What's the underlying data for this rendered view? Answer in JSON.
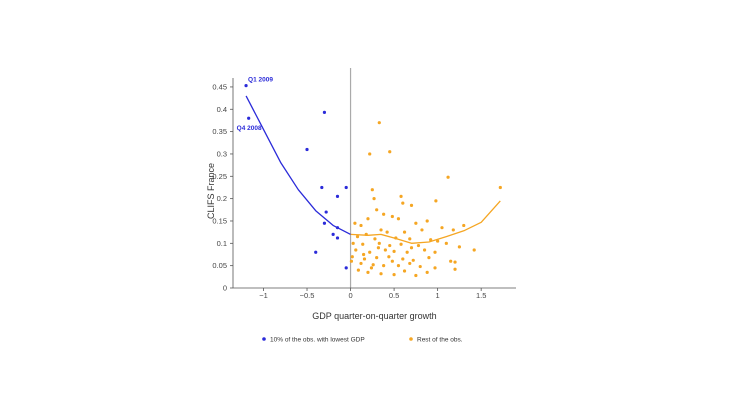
{
  "colors": {
    "low_gdp": "#2b2bd9",
    "rest": "#f5a623",
    "axis": "#555555",
    "zero_line": "#aaaaaa"
  },
  "chart_data": {
    "type": "scatter",
    "title": "",
    "xlabel": "GDP quarter-on-quarter growth",
    "ylabel": "CLIFS France",
    "xlim": [
      -1.35,
      1.9
    ],
    "ylim": [
      0,
      0.47
    ],
    "x_ticks": [
      -1,
      -0.5,
      0,
      0.5,
      1,
      1.5
    ],
    "x_tick_labels": [
      "−1",
      "−0.5",
      "0",
      "0.5",
      "1",
      "1.5"
    ],
    "y_ticks": [
      0,
      0.05,
      0.1,
      0.15,
      0.2,
      0.25,
      0.3,
      0.35,
      0.4,
      0.45
    ],
    "y_tick_labels": [
      "0",
      "0.05",
      "0.1",
      "0.15",
      "0.2",
      "0.25",
      "0.3",
      "0.35",
      "0.4",
      "0.45"
    ],
    "grid": false,
    "legend_position": "bottom",
    "annotations": [
      {
        "text": "Q1 2009",
        "x": -1.2,
        "y": 0.453
      },
      {
        "text": "Q4 2008",
        "x": -1.17,
        "y": 0.38
      }
    ],
    "series": [
      {
        "name": "10% of the obs. with lowest GDP",
        "color_key": "low_gdp",
        "points": [
          [
            -1.2,
            0.453
          ],
          [
            -1.17,
            0.38
          ],
          [
            -0.3,
            0.393
          ],
          [
            -0.5,
            0.31
          ],
          [
            -0.05,
            0.225
          ],
          [
            -0.33,
            0.225
          ],
          [
            -0.15,
            0.205
          ],
          [
            -0.28,
            0.17
          ],
          [
            -0.3,
            0.145
          ],
          [
            -0.15,
            0.135
          ],
          [
            -0.2,
            0.12
          ],
          [
            -0.15,
            0.112
          ],
          [
            -0.4,
            0.08
          ],
          [
            -0.05,
            0.045
          ]
        ],
        "trend": [
          [
            -1.2,
            0.43
          ],
          [
            -1.0,
            0.355
          ],
          [
            -0.8,
            0.28
          ],
          [
            -0.6,
            0.22
          ],
          [
            -0.4,
            0.173
          ],
          [
            -0.2,
            0.14
          ],
          [
            0.0,
            0.12
          ]
        ]
      },
      {
        "name": "Rest of the obs.",
        "color_key": "rest",
        "points": [
          [
            0.33,
            0.37
          ],
          [
            0.45,
            0.305
          ],
          [
            0.22,
            0.3
          ],
          [
            1.12,
            0.248
          ],
          [
            1.72,
            0.225
          ],
          [
            0.25,
            0.22
          ],
          [
            0.58,
            0.205
          ],
          [
            0.27,
            0.2
          ],
          [
            0.6,
            0.19
          ],
          [
            0.7,
            0.185
          ],
          [
            0.98,
            0.195
          ],
          [
            0.3,
            0.175
          ],
          [
            0.38,
            0.165
          ],
          [
            0.48,
            0.16
          ],
          [
            0.55,
            0.155
          ],
          [
            0.2,
            0.155
          ],
          [
            0.05,
            0.145
          ],
          [
            0.12,
            0.14
          ],
          [
            0.75,
            0.145
          ],
          [
            0.88,
            0.15
          ],
          [
            1.05,
            0.135
          ],
          [
            1.3,
            0.14
          ],
          [
            0.35,
            0.13
          ],
          [
            0.42,
            0.125
          ],
          [
            0.62,
            0.125
          ],
          [
            0.82,
            0.13
          ],
          [
            1.18,
            0.13
          ],
          [
            0.08,
            0.115
          ],
          [
            0.18,
            0.12
          ],
          [
            0.28,
            0.11
          ],
          [
            0.52,
            0.112
          ],
          [
            0.68,
            0.11
          ],
          [
            0.92,
            0.108
          ],
          [
            1.0,
            0.105
          ],
          [
            0.03,
            0.1
          ],
          [
            0.14,
            0.098
          ],
          [
            0.33,
            0.1
          ],
          [
            0.45,
            0.095
          ],
          [
            0.58,
            0.098
          ],
          [
            0.78,
            0.095
          ],
          [
            1.1,
            0.1
          ],
          [
            1.25,
            0.092
          ],
          [
            0.06,
            0.085
          ],
          [
            0.22,
            0.08
          ],
          [
            0.4,
            0.085
          ],
          [
            0.5,
            0.082
          ],
          [
            0.65,
            0.08
          ],
          [
            0.85,
            0.085
          ],
          [
            0.97,
            0.08
          ],
          [
            1.42,
            0.085
          ],
          [
            0.02,
            0.07
          ],
          [
            0.16,
            0.065
          ],
          [
            0.3,
            0.068
          ],
          [
            0.44,
            0.07
          ],
          [
            0.6,
            0.065
          ],
          [
            0.72,
            0.062
          ],
          [
            0.9,
            0.068
          ],
          [
            1.15,
            0.06
          ],
          [
            1.2,
            0.058
          ],
          [
            0.01,
            0.06
          ],
          [
            0.12,
            0.055
          ],
          [
            0.26,
            0.052
          ],
          [
            0.38,
            0.05
          ],
          [
            0.55,
            0.05
          ],
          [
            0.68,
            0.055
          ],
          [
            0.8,
            0.048
          ],
          [
            0.97,
            0.045
          ],
          [
            1.2,
            0.042
          ],
          [
            0.09,
            0.04
          ],
          [
            0.2,
            0.035
          ],
          [
            0.35,
            0.032
          ],
          [
            0.5,
            0.03
          ],
          [
            0.62,
            0.038
          ],
          [
            0.75,
            0.028
          ],
          [
            0.88,
            0.035
          ],
          [
            0.24,
            0.045
          ],
          [
            0.48,
            0.06
          ],
          [
            0.7,
            0.09
          ],
          [
            0.32,
            0.09
          ],
          [
            0.15,
            0.075
          ]
        ],
        "trend": [
          [
            0.0,
            0.12
          ],
          [
            0.2,
            0.118
          ],
          [
            0.35,
            0.12
          ],
          [
            0.5,
            0.112
          ],
          [
            0.7,
            0.1
          ],
          [
            0.9,
            0.103
          ],
          [
            1.1,
            0.115
          ],
          [
            1.3,
            0.128
          ],
          [
            1.5,
            0.147
          ],
          [
            1.72,
            0.195
          ]
        ]
      }
    ]
  }
}
